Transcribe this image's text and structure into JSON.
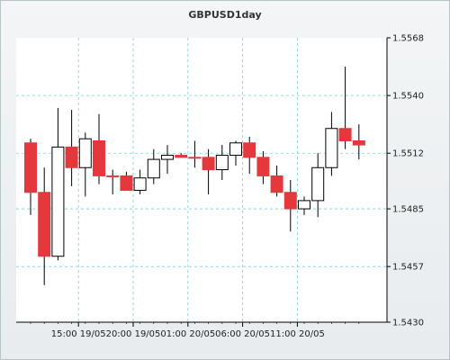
{
  "chart_data": {
    "type": "candlestick",
    "title": "GBPUSD1day",
    "xlabel": "",
    "ylabel": "",
    "ylim": [
      1.543,
      1.5568
    ],
    "y_ticks": [
      "1.5568",
      "1.5540",
      "1.5512",
      "1.5485",
      "1.5457",
      "1.5430"
    ],
    "x_ticks": [
      "15:00 19/05",
      "20:00 19/05",
      "01:00 20/05",
      "06:00 20/05",
      "11:00 20/05"
    ],
    "x_tick_candle_index": [
      3.5,
      7.5,
      11.5,
      15.5,
      19.5
    ],
    "grid": true,
    "colors": {
      "bull": "#ffffff",
      "bear": "#e5383d",
      "wick": "#000000",
      "grid": "#7fcfd0"
    },
    "candles": [
      {
        "open": 1.5517,
        "high": 1.5519,
        "low": 1.5482,
        "close": 1.5493
      },
      {
        "open": 1.5493,
        "high": 1.5505,
        "low": 1.5448,
        "close": 1.5462
      },
      {
        "open": 1.5462,
        "high": 1.5534,
        "low": 1.546,
        "close": 1.5515
      },
      {
        "open": 1.5515,
        "high": 1.5533,
        "low": 1.5496,
        "close": 1.5505
      },
      {
        "open": 1.5505,
        "high": 1.5522,
        "low": 1.5491,
        "close": 1.5519
      },
      {
        "open": 1.5518,
        "high": 1.5531,
        "low": 1.5497,
        "close": 1.5501
      },
      {
        "open": 1.5501,
        "high": 1.5504,
        "low": 1.5492,
        "close": 1.5501
      },
      {
        "open": 1.5501,
        "high": 1.5503,
        "low": 1.5494,
        "close": 1.5494
      },
      {
        "open": 1.5494,
        "high": 1.5504,
        "low": 1.5492,
        "close": 1.55
      },
      {
        "open": 1.55,
        "high": 1.5514,
        "low": 1.5497,
        "close": 1.5509
      },
      {
        "open": 1.5509,
        "high": 1.5516,
        "low": 1.5502,
        "close": 1.5511
      },
      {
        "open": 1.5511,
        "high": 1.5512,
        "low": 1.5511,
        "close": 1.551
      },
      {
        "open": 1.551,
        "high": 1.5518,
        "low": 1.5505,
        "close": 1.551
      },
      {
        "open": 1.551,
        "high": 1.5514,
        "low": 1.5492,
        "close": 1.5504
      },
      {
        "open": 1.5504,
        "high": 1.5516,
        "low": 1.5499,
        "close": 1.5511
      },
      {
        "open": 1.5511,
        "high": 1.5518,
        "low": 1.5506,
        "close": 1.5517
      },
      {
        "open": 1.5517,
        "high": 1.552,
        "low": 1.5502,
        "close": 1.551
      },
      {
        "open": 1.551,
        "high": 1.5513,
        "low": 1.5497,
        "close": 1.5501
      },
      {
        "open": 1.5501,
        "high": 1.5506,
        "low": 1.5491,
        "close": 1.5493
      },
      {
        "open": 1.5493,
        "high": 1.5499,
        "low": 1.5474,
        "close": 1.5485
      },
      {
        "open": 1.5485,
        "high": 1.5491,
        "low": 1.5482,
        "close": 1.5489
      },
      {
        "open": 1.5489,
        "high": 1.5512,
        "low": 1.5481,
        "close": 1.5505
      },
      {
        "open": 1.5505,
        "high": 1.5532,
        "low": 1.5501,
        "close": 1.5524
      },
      {
        "open": 1.5524,
        "high": 1.5554,
        "low": 1.5514,
        "close": 1.5518
      },
      {
        "open": 1.5518,
        "high": 1.5526,
        "low": 1.5509,
        "close": 1.5516
      }
    ]
  }
}
